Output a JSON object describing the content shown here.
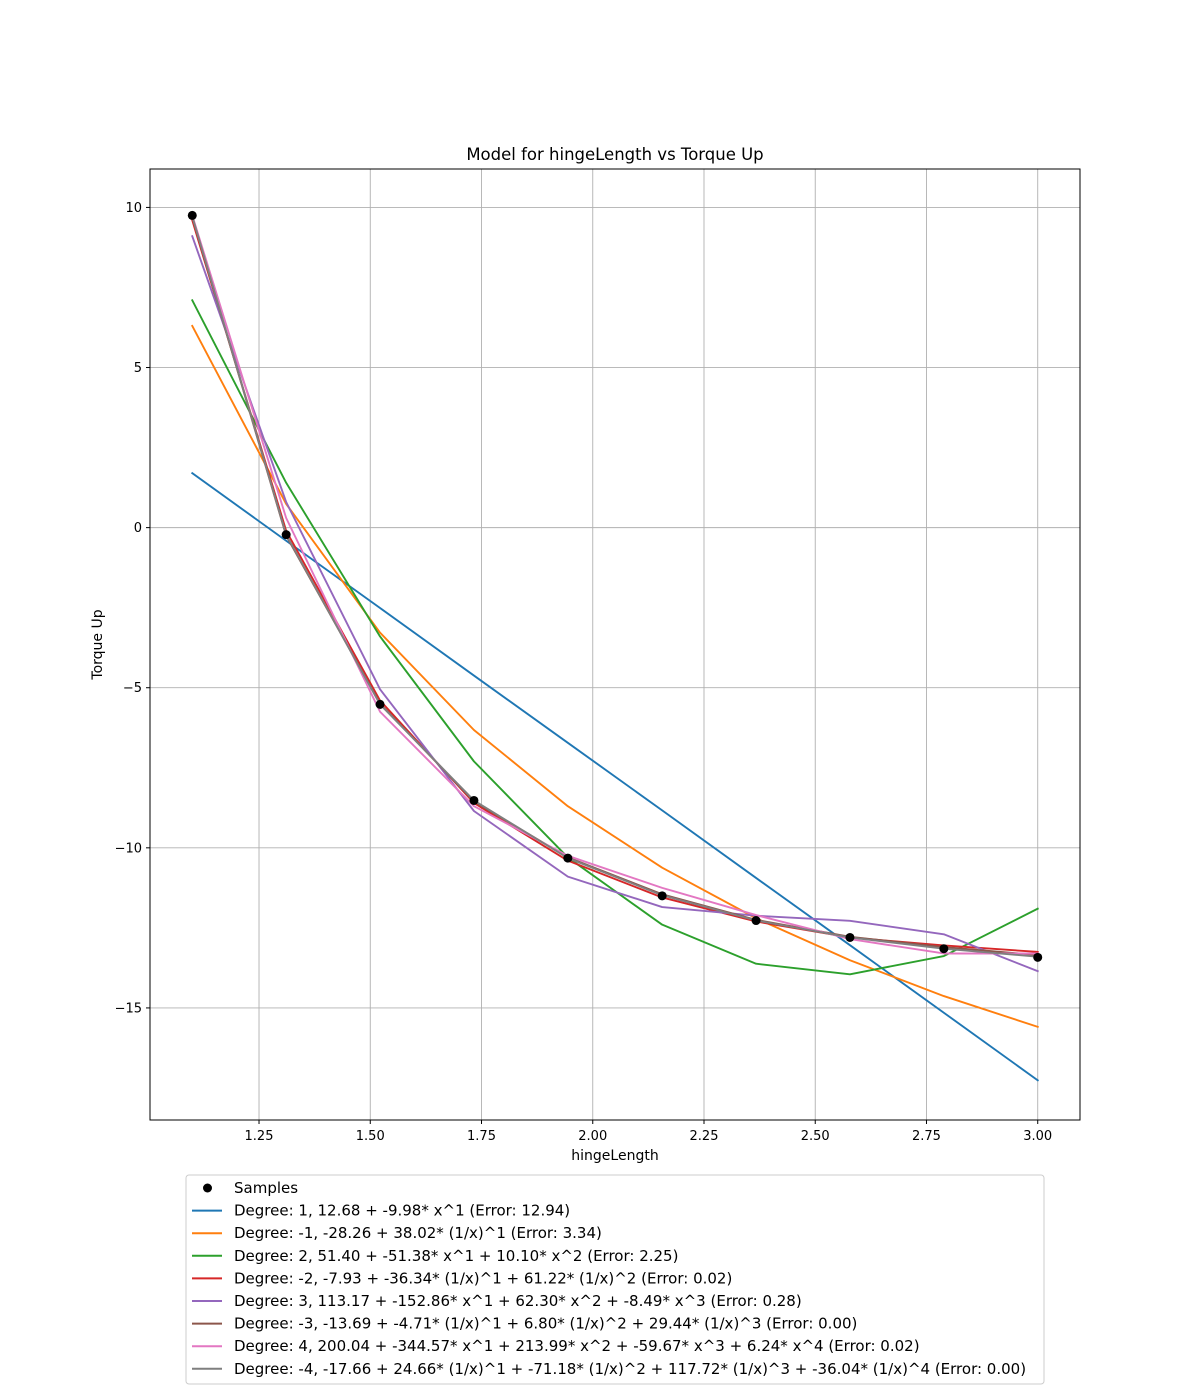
{
  "chart_data": {
    "type": "line",
    "title": "Model for hingeLength vs Torque Up",
    "xlabel": "hingeLength",
    "ylabel": "Torque Up",
    "xlim": [
      1.005,
      3.095
    ],
    "ylim": [
      -18.5,
      11.2
    ],
    "xticks": [
      1.25,
      1.5,
      1.75,
      2.0,
      2.25,
      2.5,
      2.75,
      3.0
    ],
    "xtick_labels": [
      "1.25",
      "1.50",
      "1.75",
      "2.00",
      "2.25",
      "2.50",
      "2.75",
      "3.00"
    ],
    "yticks": [
      10,
      5,
      0,
      -5,
      -10,
      -15
    ],
    "ytick_labels": [
      "10",
      "5",
      "0",
      "−5",
      "−10",
      "−15"
    ],
    "grid": true,
    "legend_position": "below plot",
    "x": [
      1.1,
      1.311,
      1.522,
      1.733,
      1.944,
      2.156,
      2.367,
      2.578,
      2.789,
      3.0
    ],
    "samples": {
      "name": "Samples",
      "color": "#000000",
      "y": [
        9.75,
        -0.22,
        -5.52,
        -8.52,
        -10.32,
        -11.5,
        -12.27,
        -12.8,
        -13.15,
        -13.42
      ]
    },
    "series": [
      {
        "name": "Degree: 1, 12.68 + -9.98* x^1 (Error: 12.94)",
        "color": "#1f77b4",
        "y": [
          1.7,
          -0.41,
          -2.51,
          -4.62,
          -6.72,
          -8.83,
          -10.94,
          -13.04,
          -15.15,
          -17.26
        ]
      },
      {
        "name": "Degree: -1, -28.26 + 38.02* (1/x)^1 (Error: 3.34)",
        "color": "#ff7f0e",
        "y": [
          6.3,
          0.74,
          -3.28,
          -6.32,
          -8.7,
          -10.62,
          -12.2,
          -13.51,
          -14.63,
          -15.59
        ]
      },
      {
        "name": "Degree: 2, 51.40 + -51.38* x^1 + 10.10* x^2 (Error: 2.25)",
        "color": "#2ca02c",
        "y": [
          7.1,
          1.4,
          -3.4,
          -7.3,
          -10.3,
          -12.4,
          -13.62,
          -13.95,
          -13.38,
          -11.9
        ]
      },
      {
        "name": "Degree: -2, -7.93 + -36.34* (1/x)^1 + 61.22* (1/x)^2 (Error: 0.02)",
        "color": "#d62728",
        "y": [
          9.6,
          -0.1,
          -5.4,
          -8.6,
          -10.4,
          -11.55,
          -12.3,
          -12.8,
          -13.05,
          -13.25
        ]
      },
      {
        "name": "Degree: 3, 113.17 + -152.86* x^1 + 62.30* x^2 + -8.49* x^3 (Error: 0.28)",
        "color": "#9467bd",
        "y": [
          9.1,
          0.8,
          -5.05,
          -8.85,
          -10.9,
          -11.85,
          -12.12,
          -12.28,
          -12.7,
          -13.85
        ]
      },
      {
        "name": "Degree: -3, -13.69 + -4.71* (1/x)^1 + 6.80* (1/x)^2 + 29.44* (1/x)^3 (Error: 0.00)",
        "color": "#8c564b",
        "y": [
          9.7,
          -0.25,
          -5.5,
          -8.55,
          -10.3,
          -11.45,
          -12.25,
          -12.78,
          -13.1,
          -13.35
        ]
      },
      {
        "name": "Degree: 4, 200.04 + -344.57* x^1 + 213.99* x^2 + -59.67* x^3 + 6.24* x^4 (Error: 0.02)",
        "color": "#e377c2",
        "y": [
          9.75,
          0.3,
          -5.75,
          -8.7,
          -10.25,
          -11.25,
          -12.1,
          -12.85,
          -13.3,
          -13.3
        ]
      },
      {
        "name": "Degree: -4, -17.66 + 24.66* (1/x)^1 + -71.18* (1/x)^2 + 117.72* (1/x)^3 + -36.04* (1/x)^4 (Error: 0.00)",
        "color": "#7f7f7f",
        "y": [
          9.72,
          -0.22,
          -5.52,
          -8.52,
          -10.32,
          -11.48,
          -12.27,
          -12.8,
          -13.15,
          -13.4
        ]
      }
    ]
  }
}
